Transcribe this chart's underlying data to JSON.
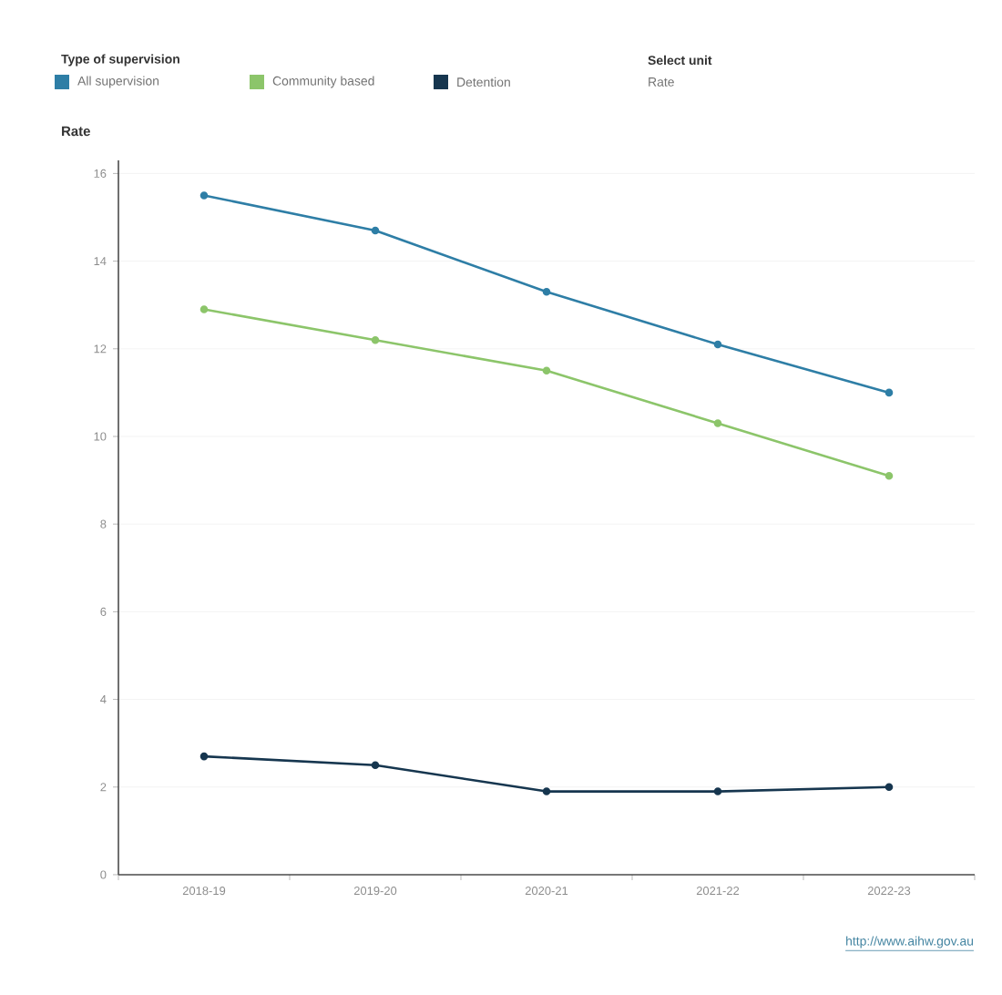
{
  "chart_data": {
    "type": "line",
    "legend_title": "Type of supervision",
    "ylabel": "Rate",
    "categories": [
      "2018-19",
      "2019-20",
      "2020-21",
      "2021-22",
      "2022-23"
    ],
    "series": [
      {
        "name": "All supervision",
        "color": "#2e7ea6",
        "values": [
          15.5,
          14.7,
          13.3,
          12.1,
          11.0
        ]
      },
      {
        "name": "Community based",
        "color": "#8cc56a",
        "values": [
          12.9,
          12.2,
          11.5,
          10.3,
          9.1
        ]
      },
      {
        "name": "Detention",
        "color": "#16364f",
        "values": [
          2.7,
          2.5,
          1.9,
          1.9,
          2.0
        ]
      }
    ],
    "ylim": [
      0,
      16.3
    ],
    "yticks": [
      0,
      2,
      4,
      6,
      8,
      10,
      12,
      14,
      16
    ],
    "grid": "y",
    "legend": "top left",
    "marker": "circle",
    "line_style": "solid",
    "annotations": [
      "Select unit",
      "Rate",
      "http://www.aihw.gov.au"
    ]
  }
}
